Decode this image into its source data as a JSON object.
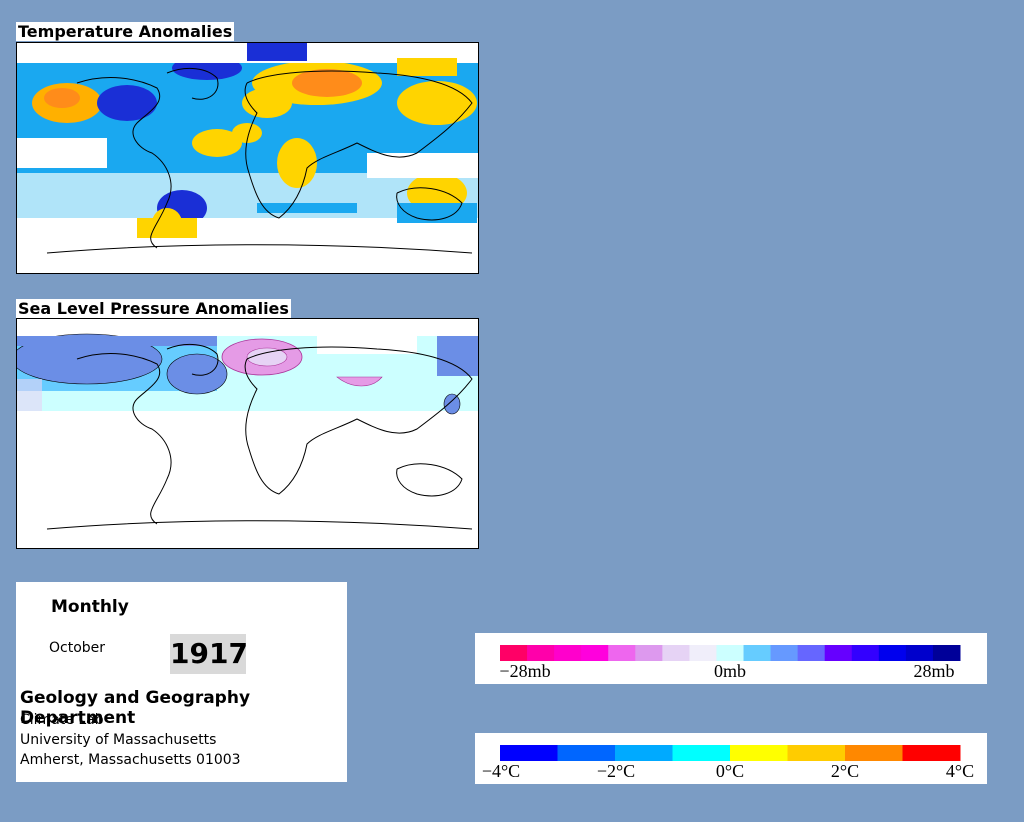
{
  "temperature_panel": {
    "title": "Temperature Anomalies"
  },
  "pressure_panel": {
    "title": "Sea Level Pressure Anomalies"
  },
  "info": {
    "mode": "Monthly",
    "month": "October",
    "year": "1917",
    "department": "Geology and Geography Department",
    "lab": "Climate Lab",
    "university": "University of Massachusetts",
    "address": "Amherst, Massachusetts 01003"
  },
  "pressure_legend": {
    "unit": "mb",
    "range": [
      -28,
      28
    ],
    "tick_labels": [
      "−28mb",
      "0mb",
      "28mb"
    ],
    "colors": [
      "#ff0066",
      "#ff00aa",
      "#ff00cc",
      "#ff00dd",
      "#ee66ee",
      "#dd99ee",
      "#e6d3f5",
      "#f0eefa",
      "#ccffff",
      "#66ccff",
      "#6699ff",
      "#6666ff",
      "#6600ff",
      "#3300ff",
      "#0000ee",
      "#0000cc",
      "#000099"
    ]
  },
  "temperature_legend": {
    "unit": "°C",
    "range": [
      -4,
      4
    ],
    "tick_labels": [
      "−4°C",
      "−2°C",
      "0°C",
      "2°C",
      "4°C"
    ],
    "colors": [
      "#0000ff",
      "#0066ff",
      "#00aaff",
      "#00ffff",
      "#ffff00",
      "#ffcc00",
      "#ff8800",
      "#ff0000"
    ]
  },
  "colors": {
    "background": "#7b9cc4",
    "cold_strong": "#1a2fd6",
    "cold": "#1aa8f0",
    "cool": "#a6f0ff",
    "warm": "#ffd400",
    "hot": "#ff8c1a",
    "pressure_high": "#6b8ee6",
    "pressure_low": "#e59be6"
  }
}
